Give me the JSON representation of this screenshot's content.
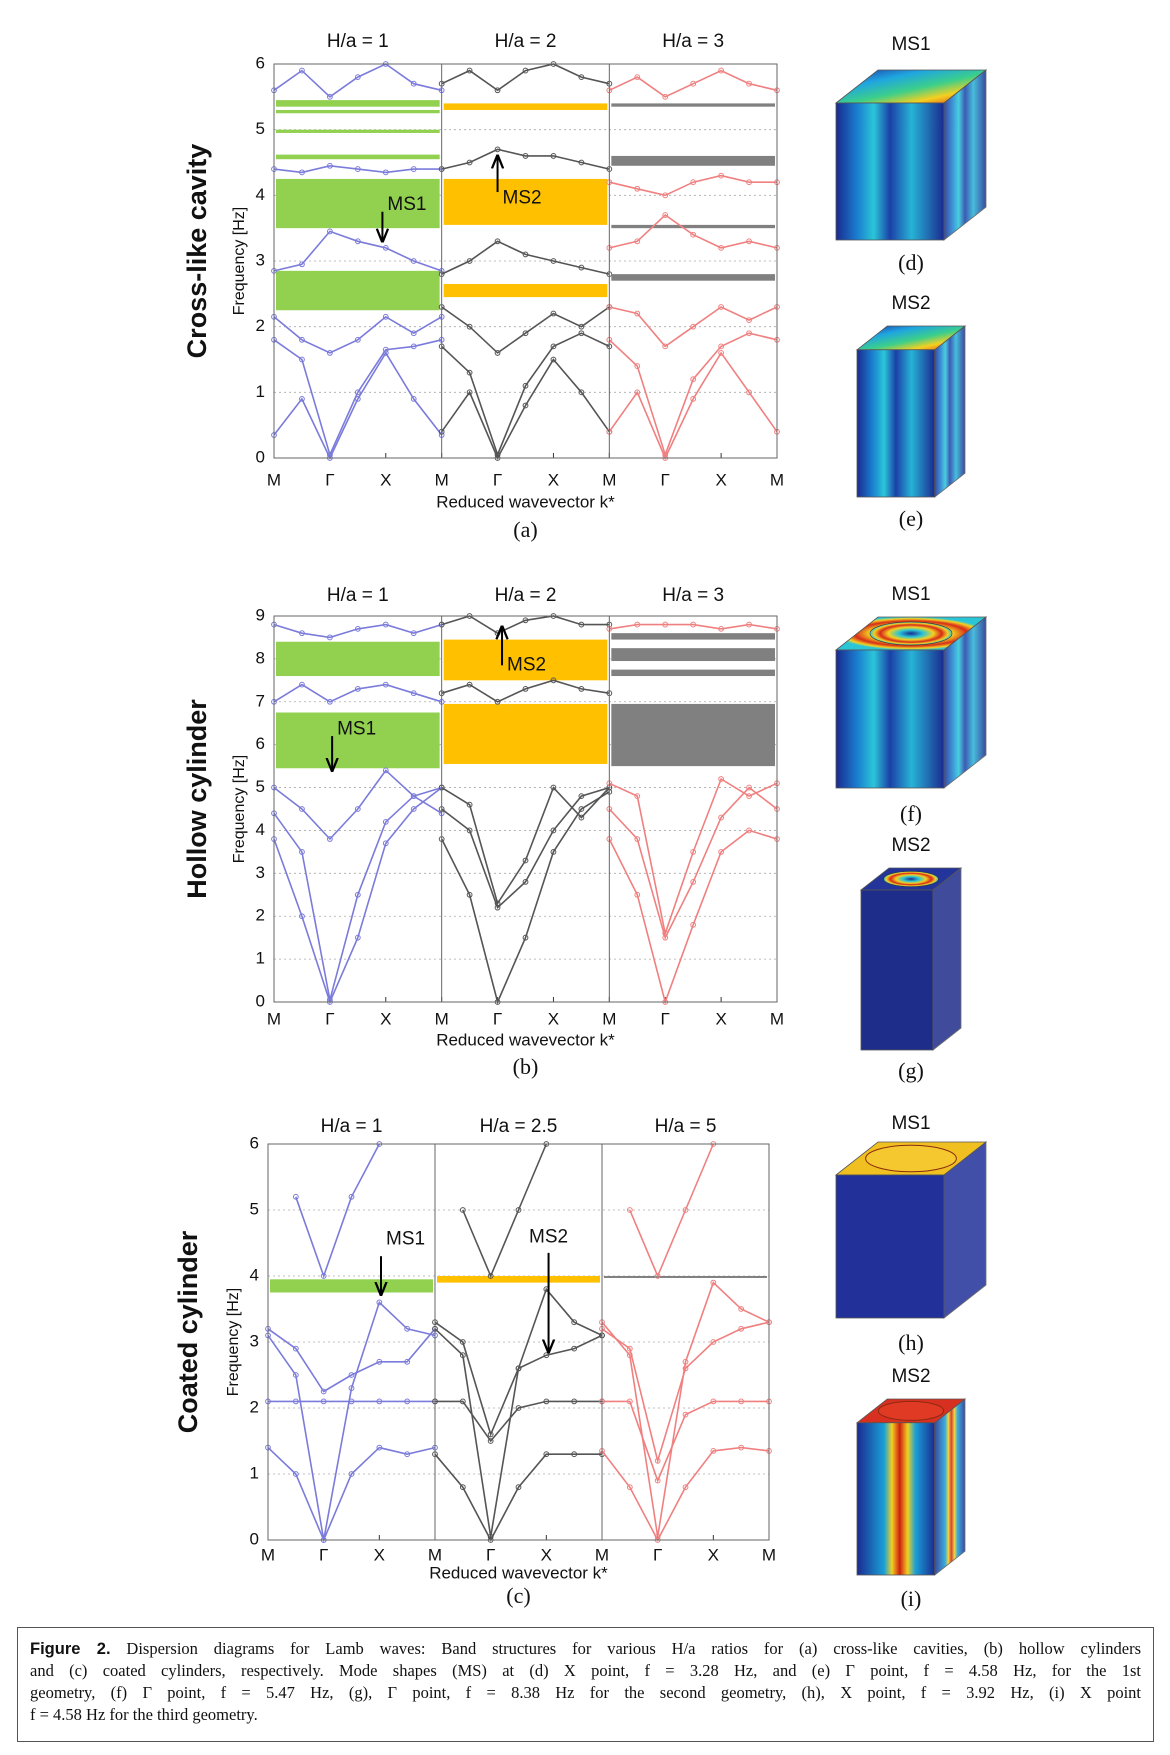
{
  "panels": [
    {
      "row_label": "Cross-like cavity",
      "y_label": "Frequency [Hz]",
      "x_label": "Reduced wavevector k*",
      "panel_label": "(a)",
      "ylim": [
        0,
        6
      ],
      "yticks": [
        0,
        1,
        2,
        3,
        4,
        5,
        6
      ],
      "xlim": [
        0,
        9
      ],
      "xticks": [
        {
          "value": 0,
          "label": "M"
        },
        {
          "value": 1,
          "label": "Γ"
        },
        {
          "value": 2,
          "label": "X"
        },
        {
          "value": 3,
          "label": "M"
        },
        {
          "value": 4,
          "label": "Γ"
        },
        {
          "value": 5,
          "label": "X"
        },
        {
          "value": 6,
          "label": "M"
        },
        {
          "value": 7,
          "label": "Γ"
        },
        {
          "value": 8,
          "label": "X"
        },
        {
          "value": 9,
          "label": "M"
        }
      ],
      "x": [
        0,
        0.5,
        1,
        1.5,
        2,
        2.5,
        3
      ],
      "subplots": [
        {
          "title": "H/a = 1",
          "curve_color": "#7b7bdb",
          "gap_color": "#92d050",
          "annotation": "MS1",
          "gaps": [
            [
              2.25,
              2.85
            ],
            [
              3.5,
              4.25
            ],
            [
              4.55,
              4.62
            ],
            [
              4.95,
              5.0
            ],
            [
              5.25,
              5.3
            ],
            [
              5.35,
              5.45
            ]
          ],
          "curves": [
            [
              0.35,
              0.9,
              0,
              0.9,
              1.6,
              0.9,
              0.35
            ],
            [
              1.8,
              1.5,
              0.05,
              1.0,
              1.65,
              1.7,
              1.8
            ],
            [
              2.15,
              1.8,
              1.6,
              1.8,
              2.15,
              1.9,
              2.15
            ],
            [
              2.85,
              2.95,
              3.45,
              3.3,
              3.2,
              3.0,
              2.85
            ],
            [
              4.4,
              4.35,
              4.45,
              4.4,
              4.35,
              4.4,
              4.4
            ],
            [
              5.6,
              5.9,
              5.5,
              5.8,
              6.0,
              5.7,
              5.6
            ]
          ]
        },
        {
          "title": "H/a = 2",
          "curve_color": "#555555",
          "gap_color": "#ffc000",
          "annotation": "MS2",
          "gaps": [
            [
              2.45,
              2.65
            ],
            [
              3.55,
              4.25
            ],
            [
              5.3,
              5.4
            ]
          ],
          "curves": [
            [
              0.4,
              1.0,
              0,
              0.8,
              1.5,
              1.0,
              0.4
            ],
            [
              1.7,
              1.3,
              0.05,
              1.1,
              1.7,
              1.9,
              1.7
            ],
            [
              2.3,
              2.0,
              1.6,
              1.9,
              2.2,
              2.0,
              2.3
            ],
            [
              2.8,
              3.0,
              3.3,
              3.1,
              3.0,
              2.9,
              2.8
            ],
            [
              4.4,
              4.5,
              4.7,
              4.6,
              4.6,
              4.5,
              4.4
            ],
            [
              5.7,
              5.9,
              5.6,
              5.9,
              6.0,
              5.8,
              5.7
            ]
          ]
        },
        {
          "title": "H/a = 3",
          "curve_color": "#f08080",
          "gap_color": "#808080",
          "gaps": [
            [
              2.7,
              2.8
            ],
            [
              3.5,
              3.55
            ],
            [
              4.45,
              4.6
            ],
            [
              5.35,
              5.4
            ]
          ],
          "curves": [
            [
              0.4,
              1.0,
              0,
              0.9,
              1.6,
              1.0,
              0.4
            ],
            [
              1.8,
              1.4,
              0.05,
              1.2,
              1.7,
              1.9,
              1.8
            ],
            [
              2.3,
              2.2,
              1.7,
              2.0,
              2.3,
              2.1,
              2.3
            ],
            [
              3.2,
              3.3,
              3.7,
              3.4,
              3.2,
              3.3,
              3.2
            ],
            [
              4.2,
              4.1,
              4.0,
              4.2,
              4.3,
              4.2,
              4.2
            ],
            [
              5.6,
              5.8,
              5.5,
              5.7,
              5.9,
              5.7,
              5.6
            ]
          ]
        }
      ]
    },
    {
      "row_label": "Hollow cylinder",
      "y_label": "Frequency [Hz]",
      "x_label": "Reduced wavevector k*",
      "panel_label": "(b)",
      "ylim": [
        0,
        9
      ],
      "yticks": [
        0,
        1,
        2,
        3,
        4,
        5,
        6,
        7,
        8,
        9
      ],
      "xlim": [
        0,
        9
      ],
      "xticks": [
        {
          "value": 0,
          "label": "M"
        },
        {
          "value": 1,
          "label": "Γ"
        },
        {
          "value": 2,
          "label": "X"
        },
        {
          "value": 3,
          "label": "M"
        },
        {
          "value": 4,
          "label": "Γ"
        },
        {
          "value": 5,
          "label": "X"
        },
        {
          "value": 6,
          "label": "M"
        },
        {
          "value": 7,
          "label": "Γ"
        },
        {
          "value": 8,
          "label": "X"
        },
        {
          "value": 9,
          "label": "M"
        }
      ],
      "x": [
        0,
        0.5,
        1,
        1.5,
        2,
        2.5,
        3
      ],
      "subplots": [
        {
          "title": "H/a = 1",
          "curve_color": "#7b7bdb",
          "gap_color": "#92d050",
          "annotation": "MS1",
          "gaps": [
            [
              5.45,
              6.75
            ],
            [
              7.6,
              8.4
            ]
          ],
          "curves": [
            [
              3.8,
              2.0,
              0,
              1.5,
              3.7,
              4.5,
              5.0
            ],
            [
              4.4,
              3.5,
              0.05,
              2.5,
              4.2,
              4.8,
              4.4
            ],
            [
              5.0,
              4.5,
              3.8,
              4.5,
              5.4,
              4.8,
              5.0
            ],
            [
              7.0,
              7.4,
              7.0,
              7.3,
              7.4,
              7.2,
              7.0
            ],
            [
              8.8,
              8.6,
              8.5,
              8.7,
              8.8,
              8.6,
              8.8
            ]
          ]
        },
        {
          "title": "H/a = 2",
          "curve_color": "#555555",
          "gap_color": "#ffc000",
          "annotation": "MS2",
          "gaps": [
            [
              5.55,
              6.95
            ],
            [
              7.5,
              8.45
            ]
          ],
          "curves": [
            [
              3.8,
              2.5,
              0,
              1.5,
              3.5,
              4.5,
              4.9
            ],
            [
              4.5,
              4.0,
              2.2,
              2.8,
              4.0,
              4.8,
              5.0
            ],
            [
              5.0,
              4.6,
              2.3,
              3.3,
              5.0,
              4.3,
              5.0
            ],
            [
              7.2,
              7.4,
              7.0,
              7.3,
              7.5,
              7.3,
              7.2
            ],
            [
              8.8,
              9.0,
              8.6,
              8.9,
              9.0,
              8.8,
              8.8
            ]
          ]
        },
        {
          "title": "H/a = 3",
          "curve_color": "#f08080",
          "gap_color": "#808080",
          "gaps": [
            [
              5.5,
              6.95
            ],
            [
              7.6,
              7.75
            ],
            [
              7.95,
              8.25
            ],
            [
              8.45,
              8.6
            ]
          ],
          "curves": [
            [
              3.8,
              2.5,
              0,
              1.8,
              3.5,
              4.0,
              3.8
            ],
            [
              4.5,
              3.8,
              1.5,
              2.8,
              4.3,
              5.0,
              4.5
            ],
            [
              5.1,
              4.8,
              1.6,
              3.5,
              5.2,
              4.8,
              5.1
            ],
            [
              8.7,
              8.8,
              8.8,
              8.8,
              8.7,
              8.8,
              8.7
            ]
          ]
        }
      ]
    },
    {
      "row_label": "Coated cylinder",
      "y_label": "Frequency [Hz]",
      "x_label": "Reduced wavevector k*",
      "panel_label": "(c)",
      "ylim": [
        0,
        6
      ],
      "yticks": [
        0,
        1,
        2,
        3,
        4,
        5,
        6
      ],
      "xlim": [
        0,
        9
      ],
      "xticks": [
        {
          "value": 0,
          "label": "M"
        },
        {
          "value": 1,
          "label": "Γ"
        },
        {
          "value": 2,
          "label": "X"
        },
        {
          "value": 3,
          "label": "M"
        },
        {
          "value": 4,
          "label": "Γ"
        },
        {
          "value": 5,
          "label": "X"
        },
        {
          "value": 6,
          "label": "M"
        },
        {
          "value": 7,
          "label": "Γ"
        },
        {
          "value": 8,
          "label": "X"
        },
        {
          "value": 9,
          "label": "M"
        }
      ],
      "x": [
        0,
        0.5,
        1,
        1.5,
        2,
        2.5,
        3
      ],
      "subplots": [
        {
          "title": "H/a = 1",
          "curve_color": "#7b7bdb",
          "gap_color": "#92d050",
          "annotation": "MS1",
          "gaps": [
            [
              3.75,
              3.95
            ]
          ],
          "curves": [
            [
              1.4,
              1.0,
              0,
              1.0,
              1.4,
              1.3,
              1.4
            ],
            [
              2.1,
              2.1,
              2.1,
              2.1,
              2.1,
              2.1,
              2.1
            ],
            [
              3.1,
              2.5,
              0,
              2.3,
              3.6,
              3.2,
              3.1
            ],
            [
              3.2,
              2.9,
              2.25,
              2.5,
              2.7,
              2.7,
              3.2
            ],
            [
              null,
              5.2,
              4.0,
              5.2,
              6.0,
              null,
              null
            ]
          ]
        },
        {
          "title": "H/a = 2.5",
          "curve_color": "#555555",
          "gap_color": "#ffc000",
          "annotation": "MS2",
          "gaps": [
            [
              3.9,
              4.0
            ]
          ],
          "curves": [
            [
              1.3,
              0.8,
              0,
              0.8,
              1.3,
              1.3,
              1.3
            ],
            [
              2.1,
              2.1,
              1.5,
              2.0,
              2.1,
              2.1,
              2.1
            ],
            [
              3.2,
              2.8,
              0.05,
              2.6,
              3.8,
              3.3,
              3.1
            ],
            [
              3.3,
              3.0,
              1.6,
              2.6,
              2.8,
              2.9,
              3.1
            ],
            [
              null,
              5.0,
              4.0,
              5.0,
              6.0,
              null,
              null
            ]
          ]
        },
        {
          "title": "H/a = 5",
          "curve_color": "#f08080",
          "gap_color": "#808080",
          "gaps": [
            [
              3.97,
              4.0
            ]
          ],
          "curves": [
            [
              1.35,
              0.8,
              0,
              0.8,
              1.35,
              1.4,
              1.35
            ],
            [
              2.1,
              2.1,
              0.9,
              1.9,
              2.1,
              2.1,
              2.1
            ],
            [
              3.3,
              2.8,
              0.05,
              2.7,
              3.9,
              3.5,
              3.3
            ],
            [
              3.2,
              2.9,
              1.2,
              2.6,
              3.0,
              3.2,
              3.3
            ],
            [
              null,
              5.0,
              4.0,
              5.0,
              6.0,
              null,
              null
            ]
          ]
        }
      ]
    }
  ],
  "mode_shapes": [
    {
      "title": "MS1",
      "label": "(d)"
    },
    {
      "title": "MS2",
      "label": "(e)"
    },
    {
      "title": "MS1",
      "label": "(f)"
    },
    {
      "title": "MS2",
      "label": "(g)"
    },
    {
      "title": "MS1",
      "label": "(h)"
    },
    {
      "title": "MS2",
      "label": "(i)"
    }
  ],
  "caption": {
    "label": "Figure 2.",
    "lines": [
      "Dispersion diagrams for Lamb waves: Band structures for various H/a ratios for (a) cross-like cavities, (b) hollow cylinders",
      "and (c) coated cylinders, respectively. Mode shapes (MS) at (d) X point, f = 3.28 Hz, and (e) Γ point, f = 4.58 Hz, for the 1st",
      "geometry, (f) Γ point, f = 5.47 Hz, (g), Γ point, f = 8.38 Hz for the second geometry, (h), X point, f = 3.92 Hz, (i) X point",
      "f = 4.58 Hz for the third geometry."
    ]
  }
}
